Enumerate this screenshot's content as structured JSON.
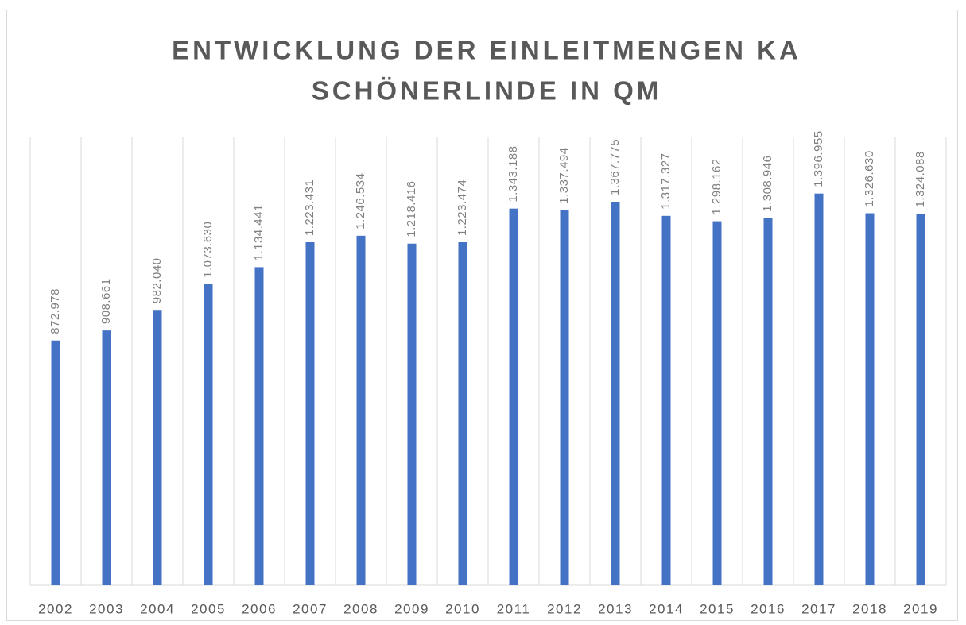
{
  "chart_data": {
    "type": "bar",
    "title": [
      "ENTWICKLUNG DER EINLEITMENGEN KA",
      "SCHÖNERLINDE IN QM"
    ],
    "categories": [
      "2002",
      "2003",
      "2004",
      "2005",
      "2006",
      "2007",
      "2008",
      "2009",
      "2010",
      "2011",
      "2012",
      "2013",
      "2014",
      "2015",
      "2016",
      "2017",
      "2018",
      "2019"
    ],
    "values": [
      872978,
      908661,
      982040,
      1073630,
      1134441,
      1223431,
      1246534,
      1218416,
      1223474,
      1343188,
      1337494,
      1367775,
      1317327,
      1298162,
      1308946,
      1396955,
      1326630,
      1324088
    ],
    "value_labels": [
      "872.978",
      "908.661",
      "982.040",
      "1.073.630",
      "1.134.441",
      "1.223.431",
      "1.246.534",
      "1.218.416",
      "1.223.474",
      "1.343.188",
      "1.337.494",
      "1.367.775",
      "1.317.327",
      "1.298.162",
      "1.308.946",
      "1.396.955",
      "1.326.630",
      "1.324.088"
    ],
    "color": "#4472c4",
    "ylim": [
      0,
      1600000
    ]
  }
}
